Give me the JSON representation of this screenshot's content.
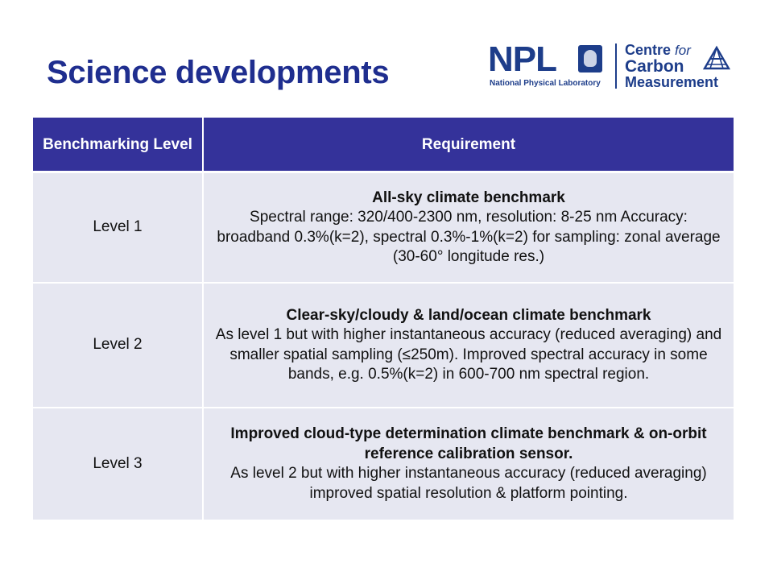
{
  "slide": {
    "title": "Science developments"
  },
  "logo": {
    "npl_mark": "NPL",
    "npl_name": "National Physical Laboratory",
    "ccm_line1": "Centre",
    "ccm_line1_for": "for",
    "ccm_line2": "Carbon",
    "ccm_line3": "Measurement"
  },
  "table": {
    "headers": [
      "Benchmarking Level",
      "Requirement"
    ],
    "rows": [
      {
        "level": "Level 1",
        "heading": "All-sky climate benchmark",
        "body": "Spectral range: 320/400-2300 nm, resolution: 8-25 nm Accuracy: broadband 0.3%(k=2), spectral 0.3%-1%(k=2) for sampling: zonal average (30-60° longitude res.)"
      },
      {
        "level": "Level 2",
        "heading": "Clear-sky/cloudy & land/ocean climate benchmark",
        "body": "As level 1 but with higher instantaneous accuracy (reduced averaging) and smaller spatial sampling (≤250m). Improved spectral accuracy in some bands, e.g. 0.5%(k=2) in 600-700 nm spectral region."
      },
      {
        "level": "Level 3",
        "heading": "Improved cloud-type determination climate benchmark & on-orbit reference calibration sensor.",
        "body": "As level 2 but with higher instantaneous accuracy (reduced averaging) improved spatial resolution & platform pointing."
      }
    ]
  },
  "colors": {
    "title": "#1f2e8f",
    "header_bg": "#34329a",
    "row_bg": "#e6e7f1",
    "logo": "#1d3d8a"
  }
}
